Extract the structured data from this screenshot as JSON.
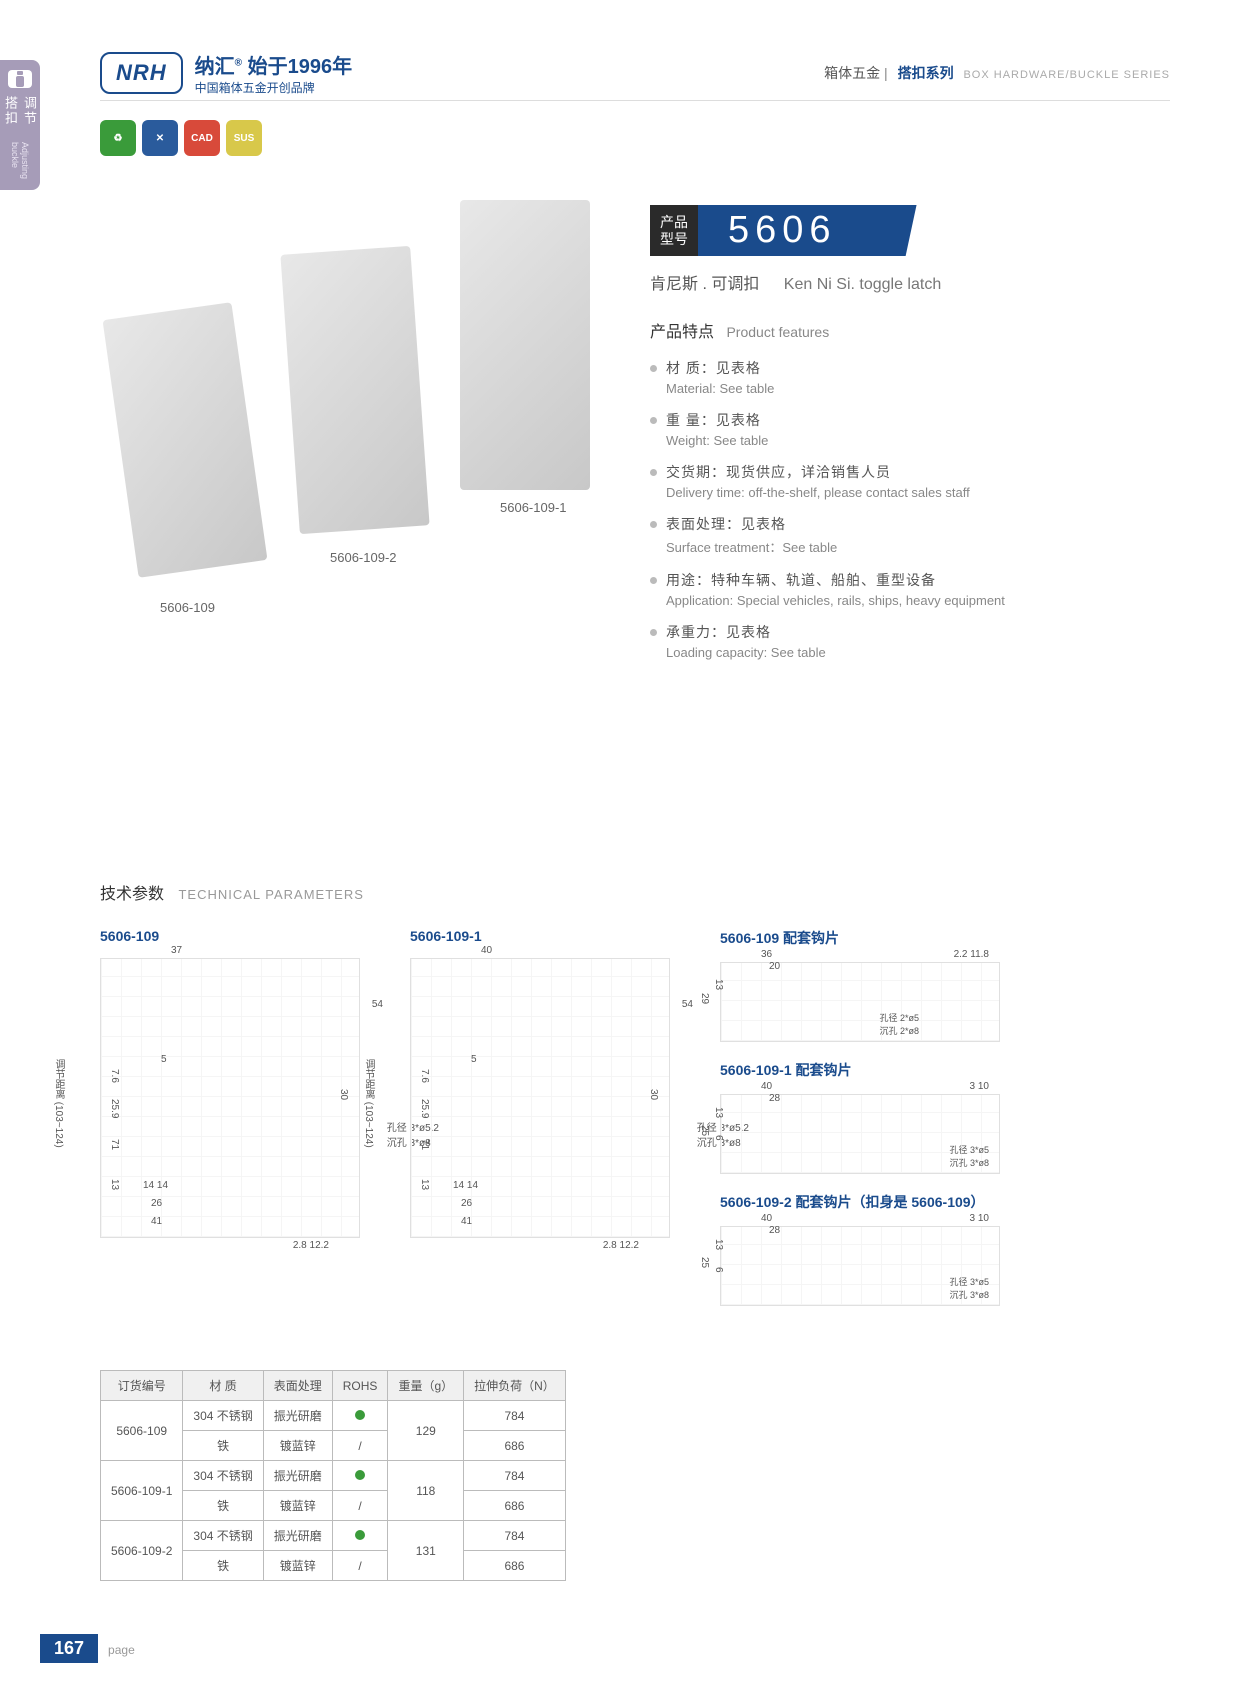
{
  "sidebar": {
    "cn": "调节搭扣",
    "en": "Adjusting buckle"
  },
  "header": {
    "logo": "NRH",
    "brand_cn": "纳汇",
    "since": "始于1996年",
    "tagline": "中国箱体五金开创品牌",
    "cat1": "箱体五金",
    "cat2": "搭扣系列",
    "cat_en": "BOX HARDWARE/BUCKLE SERIES"
  },
  "badges": [
    {
      "color": "#3a9b3a",
      "txt": "♻"
    },
    {
      "color": "#2a5b9c",
      "txt": "✕"
    },
    {
      "color": "#d84a3a",
      "txt": "CAD"
    },
    {
      "color": "#d8c84a",
      "txt": "SUS"
    }
  ],
  "products": {
    "p1": "5606-109",
    "p2": "5606-109-2",
    "p3": "5606-109-1"
  },
  "model": {
    "label": "产品\n型号",
    "num": "5606",
    "sub_cn": "肯尼斯 . 可调扣",
    "sub_en": "Ken Ni Si. toggle latch"
  },
  "feat_title": {
    "cn": "产品特点",
    "en": "Product features"
  },
  "features": [
    {
      "cn": "材 质：见表格",
      "en": "Material: See table"
    },
    {
      "cn": "重 量：见表格",
      "en": "Weight: See table"
    },
    {
      "cn": "交货期：现货供应，详洽销售人员",
      "en": "Delivery time: off-the-shelf, please contact sales staff"
    },
    {
      "cn": "表面处理：见表格",
      "en": "Surface treatment：See table"
    },
    {
      "cn": "用途：特种车辆、轨道、船舶、重型设备",
      "en": "Application: Special vehicles, rails, ships, heavy equipment"
    },
    {
      "cn": "承重力：见表格",
      "en": "Loading capacity: See table"
    }
  ],
  "tech_title": {
    "cn": "技术参数",
    "en": "TECHNICAL PARAMETERS"
  },
  "diagrams": {
    "d1": {
      "title": "5606-109",
      "dims": {
        "w": "37",
        "h1": "54",
        "h2": "7.6",
        "h3": "25.9",
        "h4": "71",
        "h5": "13",
        "b1": "14 14",
        "b2": "26",
        "b3": "41",
        "r": "2.8 12.2",
        "note": "孔径 3*ø5.2\n沉孔 3*ø8",
        "range": "调节距离 (103~124)",
        "s": "5",
        "h6": "30"
      }
    },
    "d2": {
      "title": "5606-109-1",
      "dims": {
        "w": "40",
        "h1": "54",
        "h2": "7.6",
        "h3": "25.9",
        "h4": "71",
        "h5": "13",
        "b1": "14 14",
        "b2": "26",
        "b3": "41",
        "r": "2.8 12.2",
        "note": "孔径 3*ø5.2\n沉孔 3*ø8",
        "range": "调节距离 (103~124)",
        "s": "5",
        "h6": "30"
      }
    },
    "h1": {
      "title": "5606-109 配套钩片",
      "dims": {
        "w": "36",
        "w2": "20",
        "h": "29",
        "h2": "13",
        "note": "孔径 2*ø5\n沉孔 2*ø8",
        "hk": "2.2  11.8"
      }
    },
    "h2": {
      "title": "5606-109-1 配套钩片",
      "dims": {
        "w": "40",
        "w2": "28",
        "h": "25",
        "h2": "13",
        "h3": "6",
        "note": "孔径 3*ø5\n沉孔 3*ø8",
        "hk": "3   10"
      }
    },
    "h3": {
      "title": "5606-109-2 配套钩片（扣身是 5606-109）",
      "dims": {
        "w": "40",
        "w2": "28",
        "h": "25",
        "h2": "13",
        "h3": "6",
        "note": "孔径 3*ø5\n沉孔 3*ø8",
        "hk": "3   10"
      }
    }
  },
  "table": {
    "headers": [
      "订货编号",
      "材 质",
      "表面处理",
      "ROHS",
      "重量（g）",
      "拉伸负荷（N）"
    ],
    "rows": [
      {
        "code": "5606-109",
        "mat": "304 不锈钢",
        "surf": "振光研磨",
        "rohs": true,
        "wt": "129",
        "load": "784"
      },
      {
        "code": "",
        "mat": "铁",
        "surf": "镀蓝锌",
        "rohs": false,
        "wt": "",
        "load": "686"
      },
      {
        "code": "5606-109-1",
        "mat": "304 不锈钢",
        "surf": "振光研磨",
        "rohs": true,
        "wt": "118",
        "load": "784"
      },
      {
        "code": "",
        "mat": "铁",
        "surf": "镀蓝锌",
        "rohs": false,
        "wt": "",
        "load": "686"
      },
      {
        "code": "5606-109-2",
        "mat": "304 不锈钢",
        "surf": "振光研磨",
        "rohs": true,
        "wt": "131",
        "load": "784"
      },
      {
        "code": "",
        "mat": "铁",
        "surf": "镀蓝锌",
        "rohs": false,
        "wt": "",
        "load": "686"
      }
    ]
  },
  "footer": {
    "page": "167",
    "txt": "page"
  }
}
